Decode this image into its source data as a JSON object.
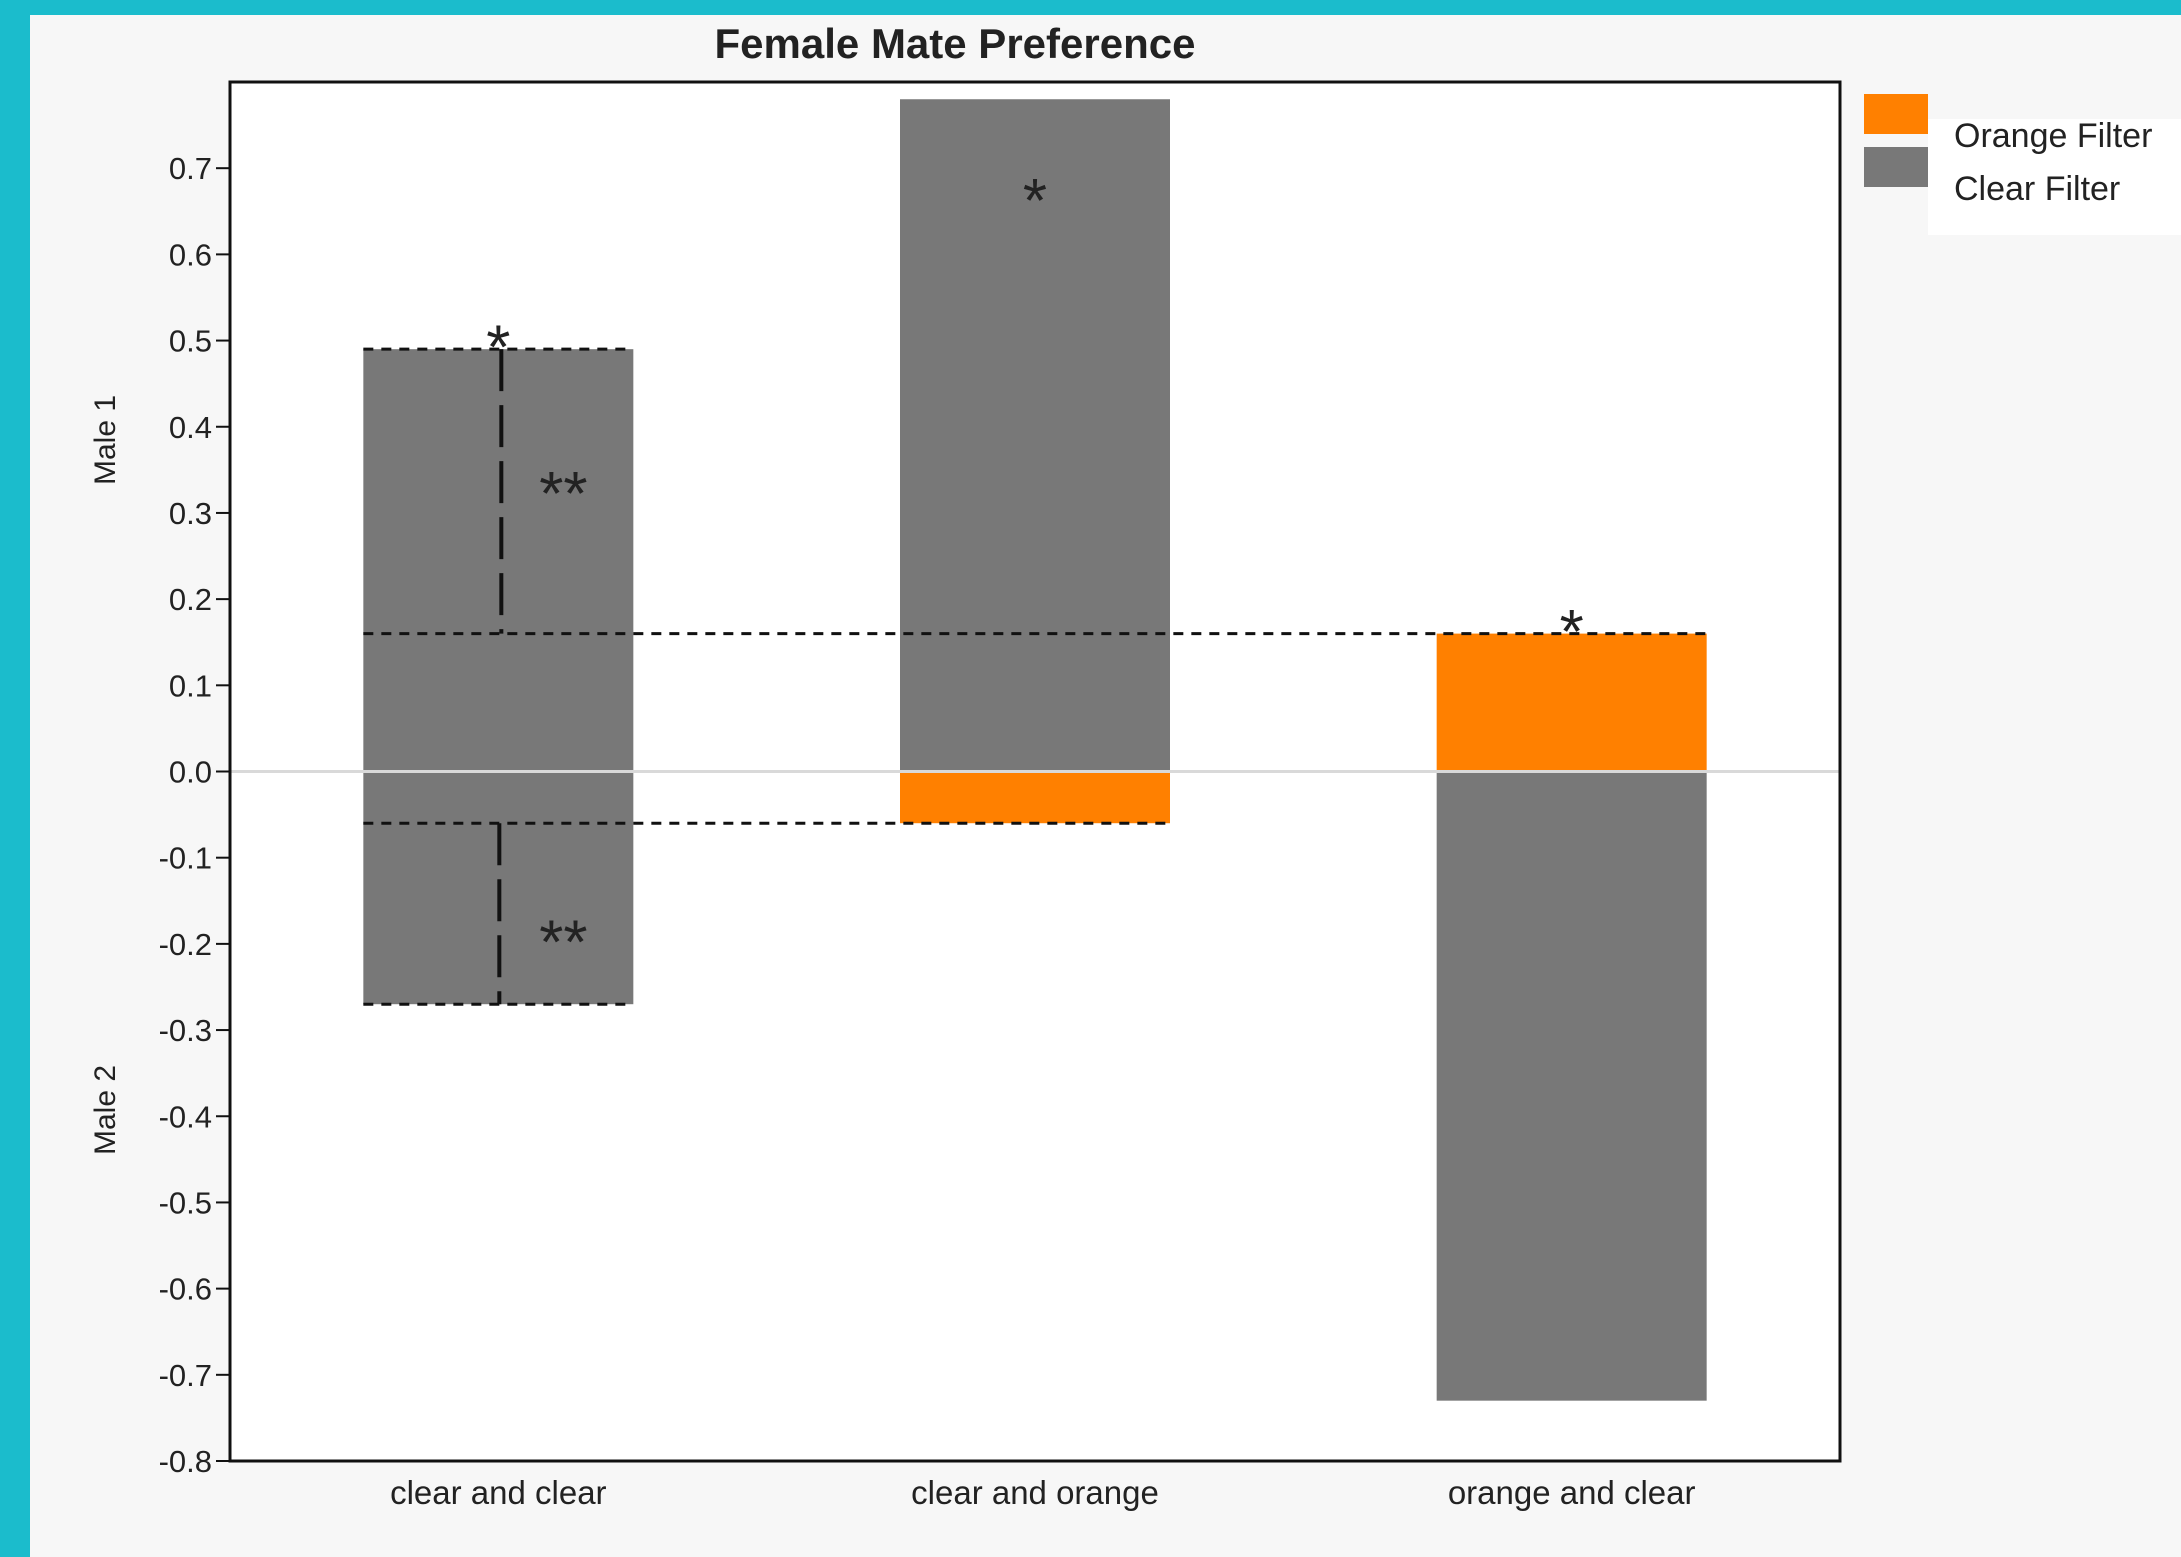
{
  "chart_data": {
    "type": "bar",
    "title": "Female Mate Preference",
    "xlabel": "",
    "ylabel": "",
    "ylim": [
      -0.8,
      0.8
    ],
    "yticks": [
      0.7,
      0.6,
      0.5,
      0.4,
      0.3,
      0.2,
      0.1,
      0.0,
      -0.1,
      -0.2,
      -0.3,
      -0.4,
      -0.5,
      -0.6,
      -0.7,
      -0.8
    ],
    "ytick_labels": [
      "0.7",
      "0.6",
      "0.5",
      "0.4",
      "0.3",
      "0.2",
      "0.1",
      "0.0",
      "-0.1",
      "-0.2",
      "-0.3",
      "-0.4",
      "-0.5",
      "-0.6",
      "-0.7",
      "-0.8"
    ],
    "side_labels": {
      "upper": "Male 1",
      "lower": "Male 2"
    },
    "categories": [
      "clear and clear",
      "clear and orange",
      "orange and clear"
    ],
    "bars": [
      {
        "category": "clear and clear",
        "male1": {
          "value": 0.49,
          "filter": "Clear Filter"
        },
        "male2": {
          "value": -0.27,
          "filter": "Clear Filter"
        }
      },
      {
        "category": "clear and orange",
        "male1": {
          "value": 0.78,
          "filter": "Clear Filter"
        },
        "male2": {
          "value": -0.06,
          "filter": "Orange Filter"
        }
      },
      {
        "category": "orange and clear",
        "male1": {
          "value": 0.16,
          "filter": "Orange Filter"
        },
        "male2": {
          "value": -0.73,
          "filter": "Clear Filter"
        }
      }
    ],
    "legend": {
      "position": "top-right",
      "entries": [
        {
          "name": "Orange Filter",
          "color": "#ff8000"
        },
        {
          "name": "Clear Filter",
          "color": "#787878"
        }
      ]
    },
    "reference_lines": [
      {
        "y": 0.49,
        "from": "clear and clear",
        "to": "clear and clear"
      },
      {
        "y": 0.16,
        "from": "clear and clear",
        "to": "orange and clear"
      },
      {
        "y": -0.06,
        "from": "clear and clear",
        "to": "clear and orange"
      },
      {
        "y": -0.27,
        "from": "clear and clear",
        "to": "clear and clear"
      }
    ],
    "annotations": [
      {
        "category": "clear and clear",
        "y": 0.5,
        "text": "*"
      },
      {
        "category": "clear and clear",
        "y": 0.33,
        "text": "**"
      },
      {
        "category": "clear and clear",
        "y": -0.19,
        "text": "**"
      },
      {
        "category": "clear and orange",
        "y": 0.67,
        "text": "*"
      },
      {
        "category": "orange and clear",
        "y": 0.17,
        "text": "*"
      }
    ],
    "grid": false
  },
  "colors": {
    "orange": "#ff8000",
    "clear": "#787878",
    "frame_border": "#1bbccc",
    "zero_line": "#d9d9d9"
  }
}
